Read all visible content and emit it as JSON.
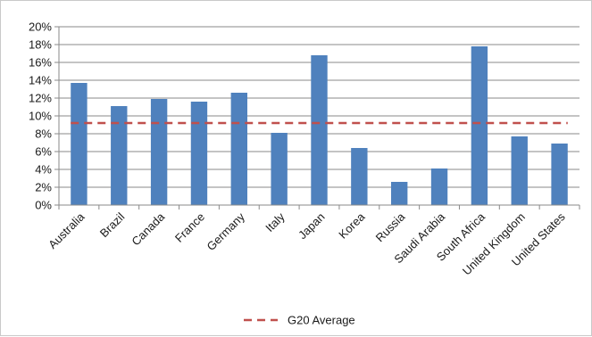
{
  "chart_data": {
    "type": "bar",
    "categories": [
      "Australia",
      "Brazil",
      "Canada",
      "France",
      "Germany",
      "Italy",
      "Japan",
      "Korea",
      "Russia",
      "Saudi Arabia",
      "South Africa",
      "United Kingdom",
      "United States"
    ],
    "series": [
      {
        "values": [
          13.7,
          11.1,
          11.9,
          11.6,
          12.6,
          8.1,
          16.8,
          6.4,
          2.6,
          4.1,
          17.8,
          7.7,
          6.9
        ],
        "color": "#4f81bd"
      }
    ],
    "reference_line": {
      "name": "G20 Average",
      "value": 9.2,
      "color": "#c0504d",
      "style": "dashed"
    },
    "ylim": [
      0,
      20
    ],
    "yticks": [
      0,
      2,
      4,
      6,
      8,
      10,
      12,
      14,
      16,
      18,
      20
    ],
    "ytick_labels": [
      "0%",
      "2%",
      "4%",
      "6%",
      "8%",
      "10%",
      "12%",
      "14%",
      "16%",
      "18%",
      "20%"
    ],
    "grid": true,
    "legend_position": "bottom",
    "legend": [
      "G20 Average"
    ]
  }
}
